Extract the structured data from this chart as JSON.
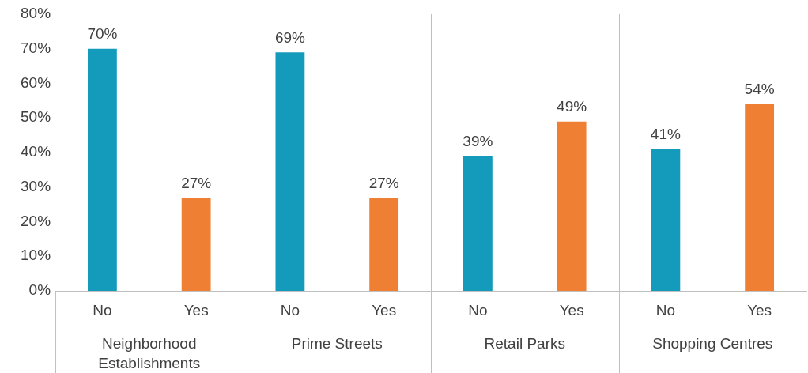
{
  "chart_data": {
    "type": "bar",
    "categories": [
      "Neighborhood Establishments",
      "Prime Streets",
      "Retail Parks",
      "Shopping Centres"
    ],
    "series": [
      {
        "name": "No",
        "color": "#149bbb",
        "values": [
          70,
          69,
          39,
          41
        ],
        "value_labels": [
          "70%",
          "69%",
          "39%",
          "41%"
        ]
      },
      {
        "name": "Yes",
        "color": "#ee7f33",
        "values": [
          27,
          27,
          49,
          54
        ],
        "value_labels": [
          "27%",
          "27%",
          "49%",
          "54%"
        ]
      }
    ],
    "ylim": [
      0,
      80
    ],
    "yticks": [
      {
        "value": 0,
        "label": "0%"
      },
      {
        "value": 10,
        "label": "10%"
      },
      {
        "value": 20,
        "label": "20%"
      },
      {
        "value": 30,
        "label": "30%"
      },
      {
        "value": 40,
        "label": "40%"
      },
      {
        "value": 50,
        "label": "50%"
      },
      {
        "value": 60,
        "label": "60%"
      },
      {
        "value": 70,
        "label": "70%"
      },
      {
        "value": 80,
        "label": "80%"
      }
    ],
    "grid": false,
    "legend": false
  }
}
